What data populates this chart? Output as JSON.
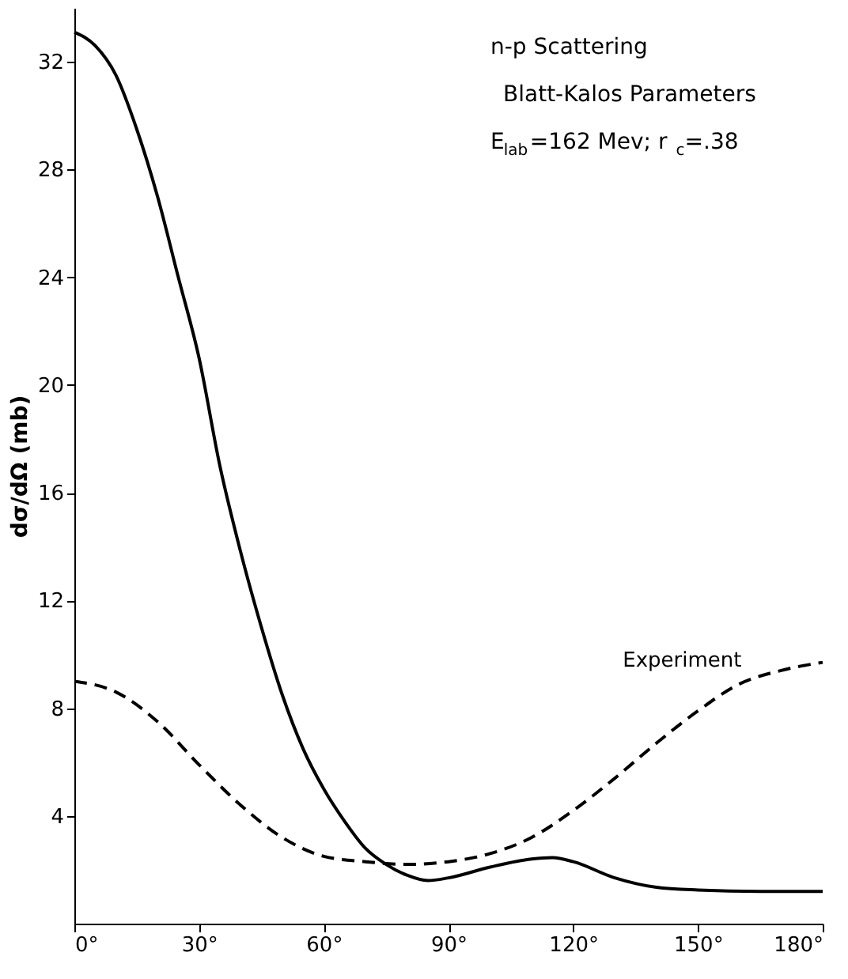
{
  "chart_data": {
    "type": "line",
    "ylabel": "dσ/dΩ (mb)",
    "annotations": [
      "n-p Scattering",
      "Blatt-Kalos Parameters",
      "E$_{lab}$=162 Mev; r$_{c}$=.38"
    ],
    "xlim": [
      0,
      180
    ],
    "ylim": [
      0,
      34
    ],
    "xticks": [
      {
        "value": 0,
        "label": "0°"
      },
      {
        "value": 30,
        "label": "30°"
      },
      {
        "value": 60,
        "label": "60°"
      },
      {
        "value": 90,
        "label": "90°"
      },
      {
        "value": 120,
        "label": "120°"
      },
      {
        "value": 150,
        "label": "150°"
      },
      {
        "value": 180,
        "label": "180°"
      }
    ],
    "yticks": [
      4,
      8,
      12,
      16,
      20,
      24,
      28,
      32
    ],
    "grid": false,
    "marker": "none",
    "series": [
      {
        "color": "#000000",
        "line_style": "solid",
        "x": [
          0,
          5,
          10,
          15,
          20,
          25,
          30,
          35,
          40,
          45,
          50,
          55,
          60,
          65,
          70,
          75,
          80,
          85,
          90,
          100,
          110,
          115,
          120,
          130,
          140,
          150,
          165,
          180
        ],
        "values": [
          33.1,
          32.6,
          31.5,
          29.5,
          27,
          24,
          21,
          17,
          13.8,
          11,
          8.5,
          6.5,
          5,
          3.8,
          2.8,
          2.2,
          1.8,
          1.6,
          1.7,
          2.1,
          2.4,
          2.45,
          2.3,
          1.7,
          1.35,
          1.25,
          1.2,
          1.2
        ]
      },
      {
        "name": "Experiment",
        "color": "#000000",
        "line_style": "dashed",
        "x": [
          0,
          10,
          20,
          30,
          40,
          50,
          60,
          70,
          80,
          90,
          100,
          110,
          120,
          130,
          140,
          150,
          160,
          170,
          180
        ],
        "values": [
          9,
          8.6,
          7.5,
          5.9,
          4.4,
          3.2,
          2.5,
          2.3,
          2.2,
          2.3,
          2.6,
          3.2,
          4.2,
          5.4,
          6.7,
          7.9,
          8.9,
          9.4,
          9.7
        ]
      }
    ]
  }
}
